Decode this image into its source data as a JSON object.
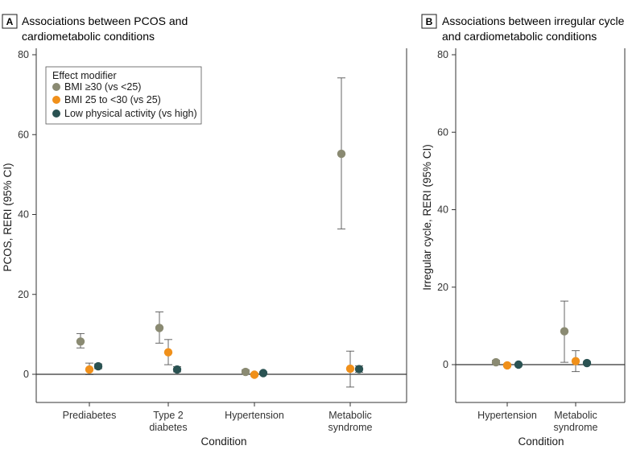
{
  "chart_data": [
    {
      "type": "scatter",
      "panel_label": "A",
      "title_lines": [
        "Associations between PCOS and",
        "cardiometabolic conditions"
      ],
      "xlabel": "Condition",
      "ylabel": "PCOS, RERI (95% CI)",
      "ylim": [
        -7,
        80
      ],
      "yticks": [
        "0",
        "20",
        "40",
        "60",
        "80"
      ],
      "categories": [
        [
          "Prediabetes"
        ],
        [
          "Type 2",
          "diabetes"
        ],
        [
          "Hypertension"
        ],
        [
          "Metabolic",
          "syndrome"
        ]
      ],
      "legend_title": "Effect modifier",
      "series": [
        {
          "name": "BMI ≥30 (vs <25)",
          "color": "#8a8a72",
          "points": [
            {
              "y": 8.2,
              "lo": 6.6,
              "hi": 10.2
            },
            {
              "y": 11.6,
              "lo": 7.8,
              "hi": 15.6
            },
            {
              "y": 0.6,
              "lo": 0.1,
              "hi": 1.1
            },
            {
              "y": 55.2,
              "lo": 36.4,
              "hi": 74.2
            }
          ]
        },
        {
          "name": "BMI 25 to <30 (vs 25)",
          "color": "#f0901a",
          "points": [
            {
              "y": 1.2,
              "lo": -0.1,
              "hi": 2.8
            },
            {
              "y": 5.5,
              "lo": 2.4,
              "hi": 8.7
            },
            {
              "y": -0.1,
              "lo": -0.4,
              "hi": 0.3
            },
            {
              "y": 1.4,
              "lo": -3.2,
              "hi": 5.8
            }
          ]
        },
        {
          "name": "Low physical activity (vs high)",
          "color": "#2a5252",
          "points": [
            {
              "y": 2.0,
              "lo": 1.4,
              "hi": 2.6
            },
            {
              "y": 1.2,
              "lo": 0.6,
              "hi": 1.9
            },
            {
              "y": 0.3,
              "lo": 0.0,
              "hi": 0.6
            },
            {
              "y": 1.3,
              "lo": 0.5,
              "hi": 2.1
            }
          ]
        }
      ]
    },
    {
      "type": "scatter",
      "panel_label": "B",
      "title_lines": [
        "Associations between irregular cycle",
        "and cardiometabolic conditions"
      ],
      "xlabel": "Condition",
      "ylabel": "Irregular cycle, RERI (95% CI)",
      "ylim": [
        -10,
        80
      ],
      "yticks": [
        "0",
        "20",
        "40",
        "60",
        "80"
      ],
      "categories": [
        [
          "Hypertension"
        ],
        [
          "Metabolic",
          "syndrome"
        ]
      ],
      "series": [
        {
          "name": "BMI ≥30 (vs <25)",
          "color": "#8a8a72",
          "points": [
            {
              "y": 0.6,
              "lo": 0.1,
              "hi": 1.1
            },
            {
              "y": 8.6,
              "lo": 0.6,
              "hi": 16.4
            }
          ]
        },
        {
          "name": "BMI 25 to <30 (vs 25)",
          "color": "#f0901a",
          "points": [
            {
              "y": -0.2,
              "lo": -0.5,
              "hi": 0.2
            },
            {
              "y": 0.9,
              "lo": -1.8,
              "hi": 3.6
            }
          ]
        },
        {
          "name": "Low physical activity (vs high)",
          "color": "#2a5252",
          "points": [
            {
              "y": 0.0,
              "lo": -0.2,
              "hi": 0.2
            },
            {
              "y": 0.4,
              "lo": 0.0,
              "hi": 0.8
            }
          ]
        }
      ]
    }
  ]
}
